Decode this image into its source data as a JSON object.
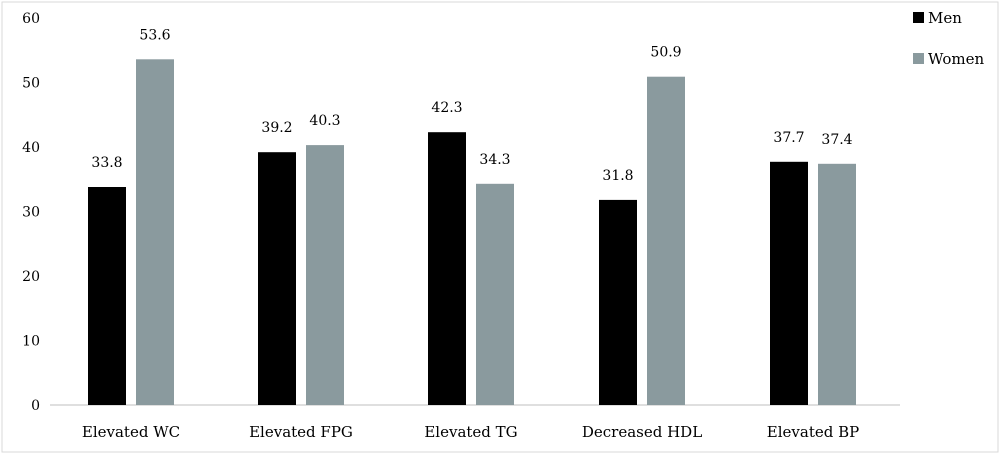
{
  "chart_data": {
    "type": "bar",
    "categories": [
      "Elevated WC",
      "Elevated FPG",
      "Elevated TG",
      "Decreased HDL",
      "Elevated BP"
    ],
    "series": [
      {
        "name": "Men",
        "values": [
          33.8,
          39.2,
          42.3,
          31.8,
          37.7
        ],
        "color": "#000000"
      },
      {
        "name": "Women",
        "values": [
          53.6,
          40.3,
          34.3,
          50.9,
          37.4
        ],
        "color": "#8a9a9e"
      }
    ],
    "data_labels": [
      [
        "33.8",
        "39.2",
        "42.3",
        "31.8",
        "37.7"
      ],
      [
        "53.6",
        "40.3",
        "34.3",
        "50.9",
        "37.4"
      ]
    ],
    "yticks": [
      "0",
      "10",
      "20",
      "30",
      "40",
      "50",
      "60"
    ],
    "ylim": [
      0,
      60
    ],
    "title": "",
    "xlabel": "",
    "ylabel": "",
    "grid": false,
    "legend_position": "top-right"
  }
}
